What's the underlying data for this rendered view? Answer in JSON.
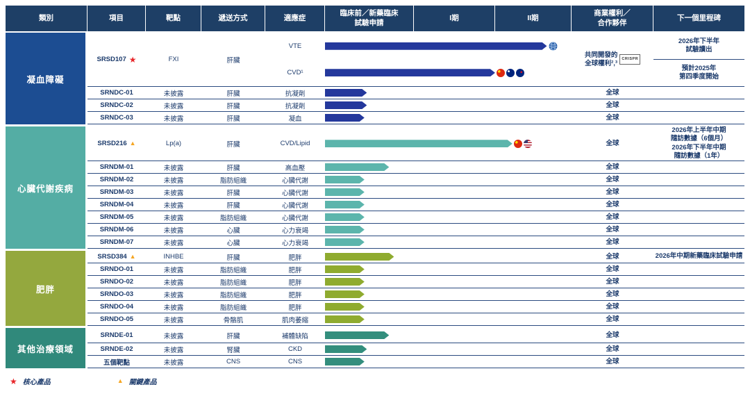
{
  "header": {
    "columns": [
      "類別",
      "項目",
      "靶點",
      "遞送方式",
      "適應症",
      "臨床前／新藥臨床\n試驗申請",
      "I期",
      "II期",
      "商業權利／\n合作夥伴",
      "下一個里程碑"
    ]
  },
  "legend": {
    "star_symbol": "★",
    "core_label": "核心產品",
    "triangle_symbol": "▲",
    "key_label": "關鍵產品"
  },
  "chart_data": {
    "type": "table",
    "title": "藥物研發管線",
    "phase_axis": [
      "臨床前／新藥臨床試驗申請",
      "I期",
      "II期"
    ],
    "groups": [
      {
        "name": "凝血障礙",
        "color": "#1c4d92",
        "bar": "#24389c",
        "rows": [
          {
            "project": "SRSD107",
            "marker": "star",
            "target": "FXI",
            "delivery": "肝臟",
            "height": 78,
            "subrows": [
              {
                "indication": "VTE",
                "bar": 0.9,
                "icons": [
                  "globe"
                ]
              },
              {
                "indication": "CVD¹",
                "bar": 0.69,
                "icons": [
                  "flag-cn",
                  "flag-au",
                  "flag-nz"
                ]
              }
            ],
            "rights": "共同開發的\n全球權利²,³",
            "rights_logo": "CRISPR",
            "milestone": [
              "2026年下半年\n試驗讀出",
              "預計2025年\n第四季度開始"
            ]
          },
          {
            "project": "SRNDC-01",
            "target": "未披露",
            "delivery": "肝臟",
            "indication": "抗凝劑",
            "bar": 0.17,
            "rights": "全球",
            "milestone": ""
          },
          {
            "project": "SRNDC-02",
            "target": "未披露",
            "delivery": "肝臟",
            "indication": "抗凝劑",
            "bar": 0.17,
            "rights": "全球",
            "milestone": ""
          },
          {
            "project": "SRNDC-03",
            "target": "未披露",
            "delivery": "肝臟",
            "indication": "凝血",
            "bar": 0.16,
            "rights": "全球",
            "milestone": ""
          }
        ]
      },
      {
        "name": "心臟代謝疾病",
        "color": "#54ada4",
        "bar": "#5cb5ac",
        "rows": [
          {
            "project": "SRSD216",
            "marker": "triangle",
            "target": "Lp(a)",
            "delivery": "肝臟",
            "indication": "CVD/Lipid",
            "bar": 0.76,
            "icons": [
              "flag-cn",
              "flag-us"
            ],
            "height": 50,
            "rights": "全球",
            "milestone": "2026年上半年中期\n隨訪數據（6個月）\n2026年下半年中期\n隨訪數據（1年）"
          },
          {
            "project": "SRNDM-01",
            "target": "未披露",
            "delivery": "肝臟",
            "indication": "高血壓",
            "bar": 0.26,
            "rights": "全球",
            "milestone": ""
          },
          {
            "project": "SRNDM-02",
            "target": "未披露",
            "delivery": "脂肪組織",
            "indication": "心臟代謝",
            "bar": 0.16,
            "rights": "全球",
            "milestone": ""
          },
          {
            "project": "SRNDM-03",
            "target": "未披露",
            "delivery": "肝臟",
            "indication": "心臟代謝",
            "bar": 0.16,
            "rights": "全球",
            "milestone": ""
          },
          {
            "project": "SRNDM-04",
            "target": "未披露",
            "delivery": "肝臟",
            "indication": "心臟代謝",
            "bar": 0.16,
            "rights": "全球",
            "milestone": ""
          },
          {
            "project": "SRNDM-05",
            "target": "未披露",
            "delivery": "脂肪組織",
            "indication": "心臟代謝",
            "bar": 0.16,
            "rights": "全球",
            "milestone": ""
          },
          {
            "project": "SRNDM-06",
            "target": "未披露",
            "delivery": "心臟",
            "indication": "心力衰竭",
            "bar": 0.16,
            "rights": "全球",
            "milestone": ""
          },
          {
            "project": "SRNDM-07",
            "target": "未披露",
            "delivery": "心臟",
            "indication": "心力衰竭",
            "bar": 0.16,
            "rights": "全球",
            "milestone": ""
          }
        ]
      },
      {
        "name": "肥胖",
        "color": "#94a83e",
        "bar": "#8fab2f",
        "rows": [
          {
            "project": "SRSD384",
            "marker": "triangle",
            "target": "INHBE",
            "delivery": "肝臟",
            "indication": "肥胖",
            "bar": 0.28,
            "rights": "全球",
            "milestone": "2026年中期新藥臨床試驗申請"
          },
          {
            "project": "SRNDO-01",
            "target": "未披露",
            "delivery": "脂肪組織",
            "indication": "肥胖",
            "bar": 0.16,
            "rights": "全球",
            "milestone": ""
          },
          {
            "project": "SRNDO-02",
            "target": "未披露",
            "delivery": "脂肪組織",
            "indication": "肥胖",
            "bar": 0.16,
            "rights": "全球",
            "milestone": ""
          },
          {
            "project": "SRNDO-03",
            "target": "未披露",
            "delivery": "脂肪組織",
            "indication": "肥胖",
            "bar": 0.16,
            "rights": "全球",
            "milestone": ""
          },
          {
            "project": "SRNDO-04",
            "target": "未披露",
            "delivery": "脂肪組織",
            "indication": "肥胖",
            "bar": 0.16,
            "rights": "全球",
            "milestone": ""
          },
          {
            "project": "SRNDO-05",
            "target": "未披露",
            "delivery": "骨骼肌",
            "indication": "肌肉萎縮",
            "bar": 0.16,
            "rights": "全球",
            "milestone": ""
          }
        ]
      },
      {
        "name": "其他治療領域",
        "color": "#30897b",
        "bar": "#338e7d",
        "rows": [
          {
            "project": "SRNDE-01",
            "target": "未披露",
            "delivery": "肝臟",
            "indication": "補體缺陷",
            "bar": 0.26,
            "height": 22,
            "rights": "全球",
            "milestone": ""
          },
          {
            "project": "SRNDE-02",
            "target": "未披露",
            "delivery": "腎臟",
            "indication": "CKD",
            "bar": 0.17,
            "rights": "全球",
            "milestone": ""
          },
          {
            "project": "五個靶點",
            "target": "未披露",
            "delivery": "CNS",
            "indication": "CNS",
            "bar": 0.16,
            "rights": "全球",
            "milestone": ""
          }
        ]
      }
    ]
  }
}
